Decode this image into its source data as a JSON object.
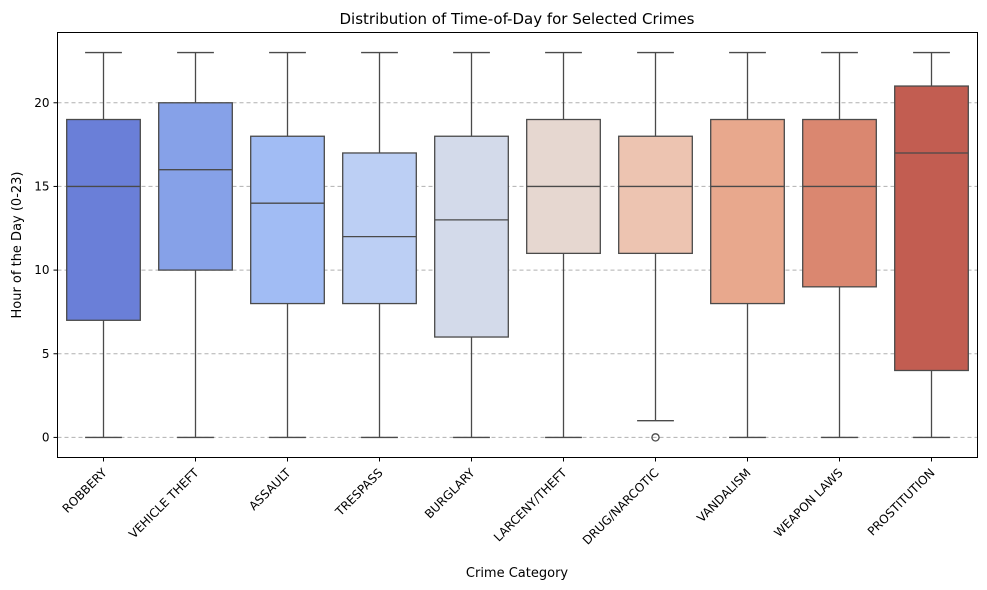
{
  "chart_data": {
    "type": "box",
    "title": "Distribution of Time-of-Day for Selected Crimes",
    "xlabel": "Crime Category",
    "ylabel": "Hour of the Day (0-23)",
    "ylim": [
      -1.2,
      24.2
    ],
    "yticks": [
      0,
      5,
      10,
      15,
      20
    ],
    "grid": "y-dashed",
    "categories": [
      "ROBBERY",
      "VEHICLE THEFT",
      "ASSAULT",
      "TRESPASS",
      "BURGLARY",
      "LARCENY/THEFT",
      "DRUG/NARCOTIC",
      "VANDALISM",
      "WEAPON LAWS",
      "PROSTITUTION"
    ],
    "boxes": [
      {
        "category": "ROBBERY",
        "whisker_low": 0,
        "q1": 7,
        "median": 15,
        "q3": 19,
        "whisker_high": 23,
        "outliers": [],
        "color": "#6a7fd8"
      },
      {
        "category": "VEHICLE THEFT",
        "whisker_low": 0,
        "q1": 10,
        "median": 16,
        "q3": 20,
        "whisker_high": 23,
        "outliers": [],
        "color": "#86a1e8"
      },
      {
        "category": "ASSAULT",
        "whisker_low": 0,
        "q1": 8,
        "median": 14,
        "q3": 18,
        "whisker_high": 23,
        "outliers": [],
        "color": "#a1bcf4"
      },
      {
        "category": "TRESPASS",
        "whisker_low": 0,
        "q1": 8,
        "median": 12,
        "q3": 17,
        "whisker_high": 23,
        "outliers": [],
        "color": "#bccff4"
      },
      {
        "category": "BURGLARY",
        "whisker_low": 0,
        "q1": 6,
        "median": 13,
        "q3": 18,
        "whisker_high": 23,
        "outliers": [],
        "color": "#d3daea"
      },
      {
        "category": "LARCENY/THEFT",
        "whisker_low": 0,
        "q1": 11,
        "median": 15,
        "q3": 19,
        "whisker_high": 23,
        "outliers": [],
        "color": "#e6d7d0"
      },
      {
        "category": "DRUG/NARCOTIC",
        "whisker_low": 1,
        "q1": 11,
        "median": 15,
        "q3": 18,
        "whisker_high": 23,
        "outliers": [
          0
        ],
        "color": "#edc4b1"
      },
      {
        "category": "VANDALISM",
        "whisker_low": 0,
        "q1": 8,
        "median": 15,
        "q3": 19,
        "whisker_high": 23,
        "outliers": [],
        "color": "#e8a88d"
      },
      {
        "category": "WEAPON LAWS",
        "whisker_low": 0,
        "q1": 9,
        "median": 15,
        "q3": 19,
        "whisker_high": 23,
        "outliers": [],
        "color": "#da8770"
      },
      {
        "category": "PROSTITUTION",
        "whisker_low": 0,
        "q1": 4,
        "median": 17,
        "q3": 21,
        "whisker_high": 23,
        "outliers": [],
        "color": "#c25d51"
      }
    ]
  }
}
